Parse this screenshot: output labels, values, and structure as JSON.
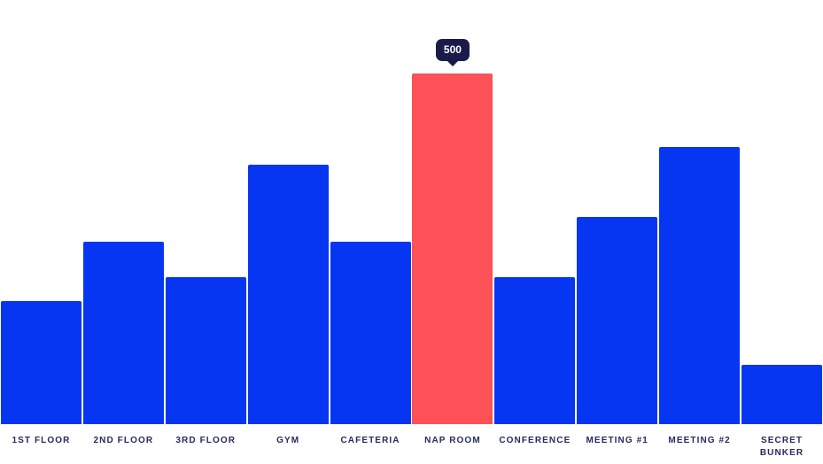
{
  "chart_data": {
    "type": "bar",
    "title": "",
    "xlabel": "",
    "ylabel": "",
    "categories": [
      "1ST FLOOR",
      "2ND FLOOR",
      "3RD FLOOR",
      "GYM",
      "CAFETERIA",
      "NAP ROOM",
      "CONFERENCE",
      "MEETING #1",
      "MEETING #2",
      "SECRET BUNKER"
    ],
    "values": [
      175,
      260,
      210,
      370,
      260,
      500,
      210,
      295,
      395,
      85
    ],
    "ylim": [
      0,
      500
    ],
    "grid": false,
    "axes_visible": false,
    "legend": "none",
    "highlighted_index": 5,
    "colors": {
      "bar": "#0636f2",
      "highlight": "#fb5157",
      "tooltip_bg": "#1a1b4b",
      "tooltip_text": "#ffffff",
      "label": "#262a5e",
      "background": "#ffffff"
    }
  },
  "tooltip": {
    "value": "500"
  }
}
